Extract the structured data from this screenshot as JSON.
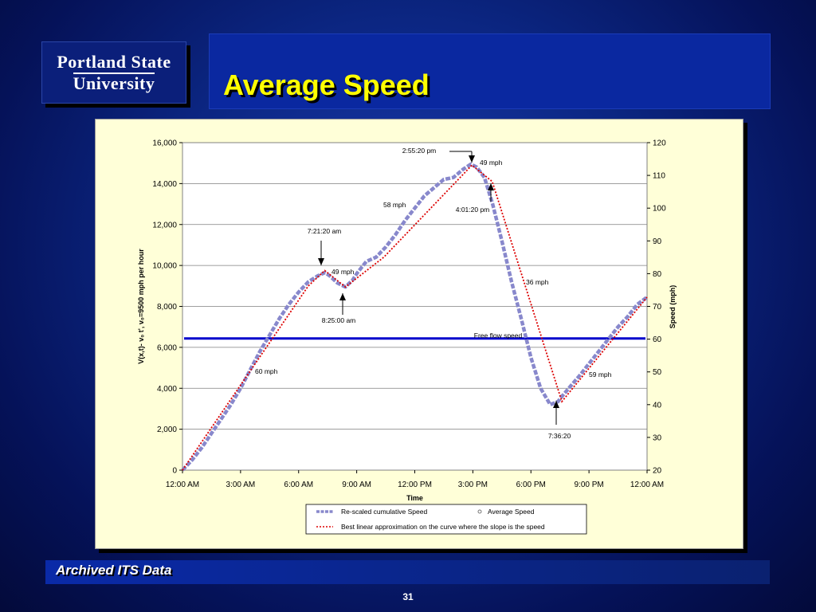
{
  "logo": {
    "line1": "Portland State",
    "line2": "University"
  },
  "slide": {
    "title": "Average Speed",
    "footer": "Archived ITS Data",
    "page_number": "31"
  },
  "colors": {
    "title_color": "#ffff00",
    "cumulative_line": "#8888cc",
    "approx_line": "#dd0000",
    "free_flow_line": "#0000cc",
    "panel_bg": "#ffffd8"
  },
  "chart_data": {
    "type": "line",
    "xlabel": "Time",
    "ylabel_left": "V(x,t)- v₀  t',  v₀=9500 mph per hour",
    "ylabel_right": "Speed (mph)",
    "x_ticks": [
      "12:00 AM",
      "3:00 AM",
      "6:00 AM",
      "9:00 AM",
      "12:00 PM",
      "3:00 PM",
      "6:00 PM",
      "9:00 PM",
      "12:00 AM"
    ],
    "y_left_ticks": [
      "0",
      "2,000",
      "4,000",
      "6,000",
      "8,000",
      "10,000",
      "12,000",
      "14,000",
      "16,000"
    ],
    "y_right_ticks": [
      "20",
      "30",
      "40",
      "50",
      "60",
      "70",
      "80",
      "90",
      "100",
      "110",
      "120"
    ],
    "ylim_left": [
      0,
      16000
    ],
    "ylim_right": [
      20,
      120
    ],
    "xlim_hours": [
      0,
      24
    ],
    "grid": true,
    "series": [
      {
        "name": "Re-scaled cumulative Speed",
        "x_hours": [
          0,
          0.5,
          1,
          1.5,
          2,
          2.5,
          3,
          3.5,
          4,
          4.5,
          5,
          5.5,
          6,
          6.5,
          7,
          7.36,
          7.6,
          8,
          8.42,
          8.8,
          9,
          9.5,
          10,
          10.5,
          11,
          11.5,
          12,
          12.5,
          13,
          13.5,
          14,
          14.5,
          14.9,
          15.2,
          15.6,
          16.02,
          16.5,
          17,
          17.5,
          18,
          18.5,
          19,
          19.4,
          19.6,
          20,
          20.5,
          21,
          21.5,
          22,
          22.5,
          23,
          23.5,
          24
        ],
        "values": [
          0,
          500,
          1100,
          1800,
          2500,
          3200,
          4000,
          4900,
          5800,
          6600,
          7400,
          8100,
          8700,
          9200,
          9500,
          9650,
          9500,
          9150,
          8950,
          9300,
          9600,
          10200,
          10400,
          10900,
          11500,
          12200,
          12800,
          13400,
          13800,
          14200,
          14300,
          14700,
          14950,
          14800,
          14300,
          13000,
          11200,
          9200,
          7400,
          5500,
          4000,
          3200,
          3350,
          3600,
          4050,
          4600,
          5200,
          5800,
          6400,
          7000,
          7500,
          8100,
          8450
        ]
      },
      {
        "name": "Best linear approximation on the curve where the slope is the  speed",
        "x_hours": [
          0,
          6.5,
          7.35,
          8.42,
          10.4,
          14.95,
          16.0,
          19.6,
          24
        ],
        "values": [
          0,
          9000,
          9750,
          8950,
          10400,
          14900,
          14100,
          3350,
          8450
        ]
      },
      {
        "name": "Free flow speed",
        "axis": "right",
        "values_mph": [
          60.2
        ]
      }
    ],
    "legend": [
      "Re-scaled cumulative Speed",
      "Average Speed",
      "Best linear approximation on the curve where the slope is the  speed"
    ],
    "annotations": {
      "times": [
        "7:21:20 am",
        "8:25:00 am",
        "2:55:20 pm",
        "4:01:20 pm",
        "7:36:20"
      ],
      "speeds": [
        "60 mph",
        "49 mph",
        "58 mph",
        "49 mph",
        "36 mph",
        "59 mph"
      ],
      "free_flow": "Free flow speed"
    }
  }
}
